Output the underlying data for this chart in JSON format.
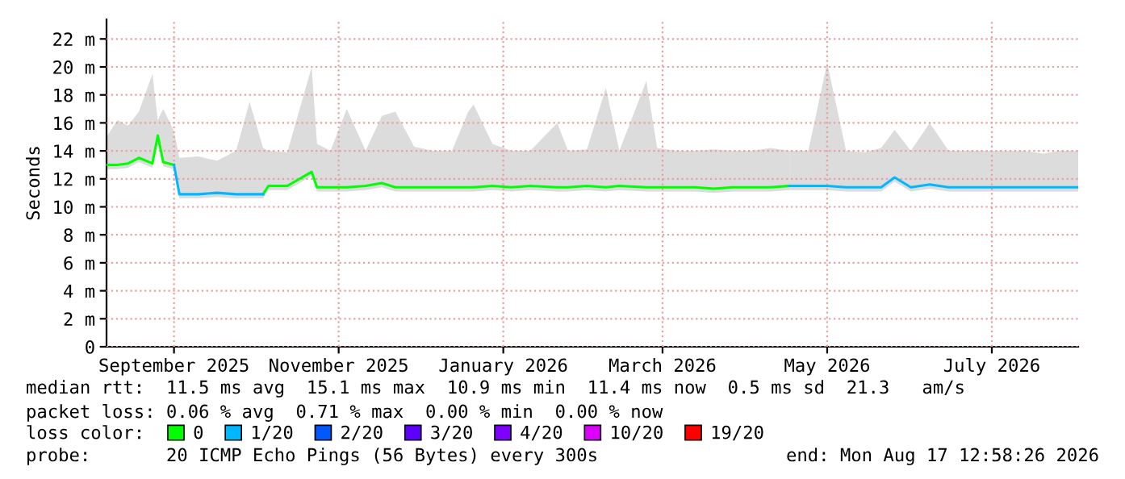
{
  "chart_data": {
    "type": "line",
    "ylabel": "Seconds",
    "legend_title": "loss color:",
    "legend": "bottom",
    "grid": true,
    "line_style": "solid",
    "annotations": [
      "median rtt:  11.5 ms avg  15.1 ms max  10.9 ms min  11.4 ms now  0.5 ms sd  21.3   am/s",
      "packet loss: 0.06 % avg  0.71 % max  0.00 % min  0.00 % now",
      "probe:       20 ICMP Echo Pings (56 Bytes) every 300s",
      "end: Mon Aug 17 12:58:26 2026"
    ],
    "xlim": [
      "2025-08-22",
      "2026-08-17"
    ],
    "xticks": [
      {
        "value": "2025-09-16",
        "label": "September 2025"
      },
      {
        "value": "2025-11-16",
        "label": "November 2025"
      },
      {
        "value": "2026-01-16",
        "label": "January 2026"
      },
      {
        "value": "2026-03-16",
        "label": "March 2026"
      },
      {
        "value": "2026-05-16",
        "label": "May 2026"
      },
      {
        "value": "2026-07-16",
        "label": "July 2026"
      }
    ],
    "ylim": [
      0,
      23.4
    ],
    "yticks": [
      0,
      {
        "value": 2,
        "label": "2 m"
      },
      {
        "value": 4,
        "label": "4 m"
      },
      {
        "value": 6,
        "label": "6 m"
      },
      {
        "value": 8,
        "label": "8 m"
      },
      {
        "value": 10,
        "label": "10 m"
      },
      {
        "value": 12,
        "label": "12 m"
      },
      {
        "value": 14,
        "label": "14 m"
      },
      {
        "value": 16,
        "label": "16 m"
      },
      {
        "value": 18,
        "label": "18 m"
      },
      {
        "value": 20,
        "label": "20 m"
      },
      {
        "value": 22,
        "label": "22 m"
      }
    ],
    "x": [
      "2025-08-22",
      "2025-08-26",
      "2025-08-30",
      "2025-09-03",
      "2025-09-08",
      "2025-09-10",
      "2025-09-12",
      "2025-09-16",
      "2025-09-18",
      "2025-09-25",
      "2025-10-02",
      "2025-10-09",
      "2025-10-14",
      "2025-10-19",
      "2025-10-21",
      "2025-10-28",
      "2025-11-06",
      "2025-11-08",
      "2025-11-13",
      "2025-11-19",
      "2025-11-26",
      "2025-12-02",
      "2025-12-07",
      "2025-12-14",
      "2025-12-21",
      "2025-12-28",
      "2026-01-03",
      "2026-01-05",
      "2026-01-12",
      "2026-01-19",
      "2026-01-26",
      "2026-02-05",
      "2026-02-09",
      "2026-02-16",
      "2026-02-23",
      "2026-02-28",
      "2026-03-10",
      "2026-03-14",
      "2026-03-21",
      "2026-03-28",
      "2026-04-04",
      "2026-04-11",
      "2026-04-18",
      "2026-04-25",
      "2026-05-02",
      "2026-05-09",
      "2026-05-16",
      "2026-05-23",
      "2026-05-30",
      "2026-06-05",
      "2026-06-10",
      "2026-06-16",
      "2026-06-23",
      "2026-06-30",
      "2026-07-07",
      "2026-07-14",
      "2026-07-21",
      "2026-07-28",
      "2026-08-04",
      "2026-08-10",
      "2026-08-17"
    ],
    "series": [
      {
        "name": "0",
        "color": "#00ff00",
        "values": [
          13.0,
          13.0,
          13.1,
          13.5,
          13.1,
          15.1,
          13.2,
          13.0,
          null,
          null,
          null,
          null,
          null,
          10.9,
          11.5,
          11.5,
          12.5,
          11.4,
          11.4,
          11.4,
          11.5,
          11.7,
          11.4,
          11.4,
          11.4,
          11.4,
          11.4,
          11.4,
          11.5,
          11.4,
          11.5,
          11.4,
          11.4,
          11.5,
          11.4,
          11.5,
          11.4,
          11.4,
          11.4,
          11.4,
          11.3,
          11.4,
          11.4,
          11.4,
          11.5,
          null,
          null,
          null,
          null,
          null,
          null,
          null,
          null,
          null,
          null,
          null,
          null,
          null,
          null,
          null,
          null
        ],
        "upper": [
          15.0,
          16.2,
          15.8,
          16.8,
          19.5,
          16.2,
          17.0,
          15.4,
          null,
          null,
          null,
          null,
          null,
          14.2,
          14.0,
          13.9,
          20.0,
          14.5,
          14.0,
          17.0,
          14.0,
          16.5,
          16.8,
          14.3,
          14.0,
          14.0,
          16.8,
          17.3,
          14.5,
          14.0,
          14.0,
          16.0,
          14.0,
          14.1,
          18.5,
          14.0,
          19.0,
          14.2,
          14.0,
          14.0,
          14.1,
          14.0,
          14.0,
          14.2,
          14.0,
          null,
          null,
          null,
          null,
          null,
          null,
          null,
          null,
          null,
          null,
          null,
          null,
          null,
          null,
          null,
          null
        ],
        "lower": [
          12.7,
          12.7,
          12.8,
          13.2,
          12.8,
          14.8,
          12.9,
          12.7,
          null,
          null,
          null,
          null,
          null,
          10.6,
          11.2,
          11.2,
          12.2,
          11.1,
          11.1,
          11.1,
          11.2,
          11.4,
          11.1,
          11.1,
          11.1,
          11.1,
          11.1,
          11.1,
          11.2,
          11.1,
          11.2,
          11.1,
          11.1,
          11.2,
          11.1,
          11.2,
          11.1,
          11.1,
          11.1,
          11.1,
          11.0,
          11.1,
          11.1,
          11.1,
          11.2,
          null,
          null,
          null,
          null,
          null,
          null,
          null,
          null,
          null,
          null,
          null,
          null,
          null,
          null,
          null,
          null
        ]
      },
      {
        "name": "1/20",
        "color": "#00b8ff",
        "values": [
          null,
          null,
          null,
          null,
          null,
          null,
          null,
          13.0,
          10.9,
          10.9,
          11.0,
          10.9,
          10.9,
          10.9,
          null,
          null,
          null,
          null,
          null,
          null,
          null,
          null,
          null,
          null,
          null,
          null,
          null,
          null,
          null,
          null,
          null,
          null,
          null,
          null,
          null,
          null,
          null,
          null,
          null,
          null,
          null,
          null,
          null,
          null,
          11.5,
          11.5,
          11.5,
          11.4,
          11.4,
          11.4,
          12.1,
          11.4,
          11.6,
          11.4,
          11.4,
          11.4,
          11.4,
          11.4,
          11.4,
          11.4,
          11.4
        ],
        "upper": [
          null,
          null,
          null,
          null,
          null,
          null,
          null,
          15.4,
          13.5,
          13.6,
          13.3,
          14.0,
          17.5,
          14.2,
          null,
          null,
          null,
          null,
          null,
          null,
          null,
          null,
          null,
          null,
          null,
          null,
          null,
          null,
          null,
          null,
          null,
          null,
          null,
          null,
          null,
          null,
          null,
          null,
          null,
          null,
          null,
          null,
          null,
          null,
          14.0,
          14.0,
          20.3,
          14.0,
          13.9,
          14.2,
          15.5,
          14.0,
          16.0,
          14.0,
          14.0,
          14.0,
          14.0,
          14.0,
          13.8,
          14.0,
          14.0
        ],
        "lower": [
          null,
          null,
          null,
          null,
          null,
          null,
          null,
          12.7,
          10.6,
          10.6,
          10.7,
          10.6,
          10.6,
          10.6,
          null,
          null,
          null,
          null,
          null,
          null,
          null,
          null,
          null,
          null,
          null,
          null,
          null,
          null,
          null,
          null,
          null,
          null,
          null,
          null,
          null,
          null,
          null,
          null,
          null,
          null,
          null,
          null,
          null,
          null,
          11.2,
          11.2,
          11.2,
          11.1,
          11.1,
          11.1,
          11.8,
          11.1,
          11.3,
          11.1,
          11.1,
          11.1,
          11.1,
          11.1,
          11.1,
          11.1,
          11.1
        ]
      },
      {
        "name": "2/20",
        "color": "#0059ff",
        "values": [
          null,
          null,
          null,
          null,
          null,
          null,
          null,
          null,
          null,
          null,
          null,
          null,
          null,
          null,
          null,
          null,
          null,
          null,
          null,
          null,
          null,
          null,
          null,
          null,
          null,
          null,
          null,
          null,
          null,
          null,
          null,
          null,
          null,
          null,
          null,
          null,
          null,
          null,
          null,
          null,
          null,
          null,
          null,
          null,
          null,
          null,
          null,
          null,
          null,
          null,
          null,
          null,
          null,
          null,
          null,
          null,
          null,
          null,
          null,
          null,
          null
        ]
      },
      {
        "name": "3/20",
        "color": "#5e00ff",
        "values": [
          null,
          null,
          null,
          null,
          null,
          null,
          null,
          null,
          null,
          null,
          null,
          null,
          null,
          null,
          null,
          null,
          null,
          null,
          null,
          null,
          null,
          null,
          null,
          null,
          null,
          null,
          null,
          null,
          null,
          null,
          null,
          null,
          null,
          null,
          null,
          null,
          null,
          null,
          null,
          null,
          null,
          null,
          null,
          null,
          null,
          null,
          null,
          null,
          null,
          null,
          null,
          null,
          null,
          null,
          null,
          null,
          null,
          null,
          null,
          null,
          null
        ]
      },
      {
        "name": "4/20",
        "color": "#7e00ff",
        "values": [
          null,
          null,
          null,
          null,
          null,
          null,
          null,
          null,
          null,
          null,
          null,
          null,
          null,
          null,
          null,
          null,
          null,
          null,
          null,
          null,
          null,
          null,
          null,
          null,
          null,
          null,
          null,
          null,
          null,
          null,
          null,
          null,
          null,
          null,
          null,
          null,
          null,
          null,
          null,
          null,
          null,
          null,
          null,
          null,
          null,
          null,
          null,
          null,
          null,
          null,
          null,
          null,
          null,
          null,
          null,
          null,
          null,
          null,
          null,
          null,
          null
        ]
      },
      {
        "name": "10/20",
        "color": "#dd00ff",
        "values": [
          null,
          null,
          null,
          null,
          null,
          null,
          null,
          null,
          null,
          null,
          null,
          null,
          null,
          null,
          null,
          null,
          null,
          null,
          null,
          null,
          null,
          null,
          null,
          null,
          null,
          null,
          null,
          null,
          null,
          null,
          null,
          null,
          null,
          null,
          null,
          null,
          null,
          null,
          null,
          null,
          null,
          null,
          null,
          null,
          null,
          null,
          null,
          null,
          null,
          null,
          null,
          null,
          null,
          null,
          null,
          null,
          null,
          null,
          null,
          null,
          null
        ]
      },
      {
        "name": "19/20",
        "color": "#ff0000",
        "values": [
          null,
          null,
          null,
          null,
          null,
          null,
          null,
          null,
          null,
          null,
          null,
          null,
          null,
          null,
          null,
          null,
          null,
          null,
          null,
          null,
          null,
          null,
          null,
          null,
          null,
          null,
          null,
          null,
          null,
          null,
          null,
          null,
          null,
          null,
          null,
          null,
          null,
          null,
          null,
          null,
          null,
          null,
          null,
          null,
          null,
          null,
          null,
          null,
          null,
          null,
          null,
          null,
          null,
          null,
          null,
          null,
          null,
          null,
          null,
          null,
          null
        ]
      }
    ]
  }
}
